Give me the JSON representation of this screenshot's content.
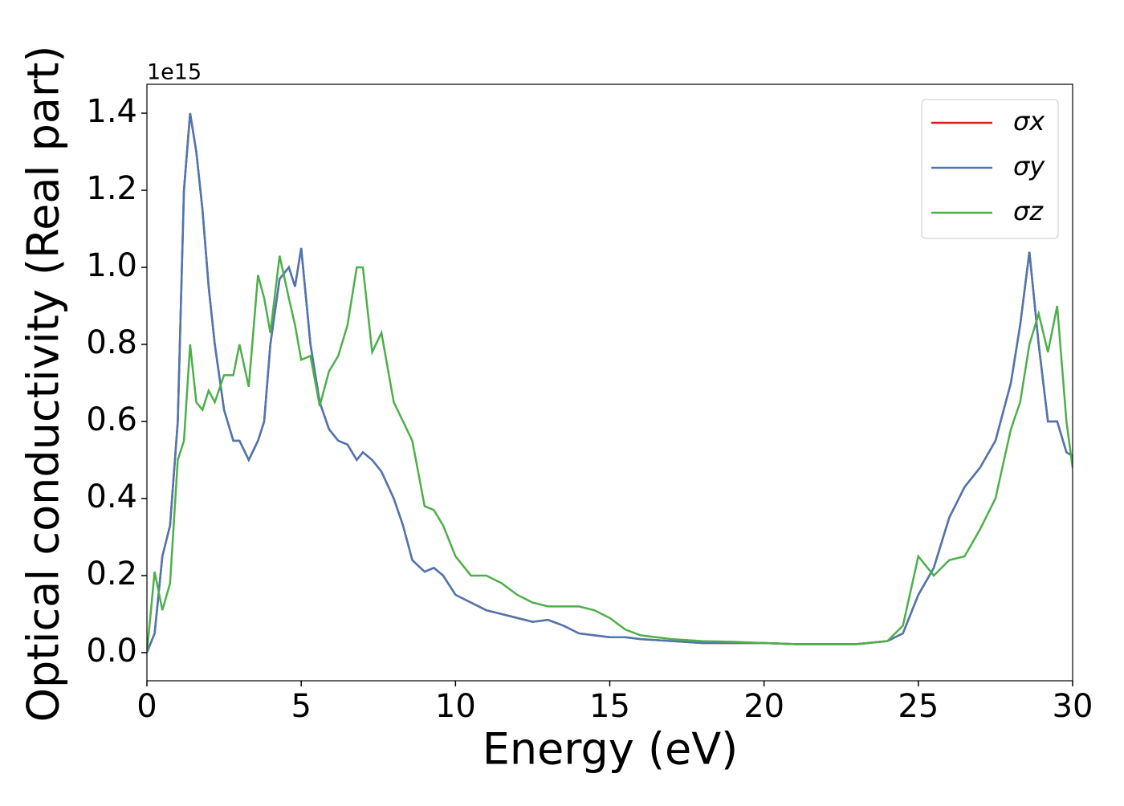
{
  "chart_data": {
    "type": "line",
    "xlabel": "Energy (eV)",
    "ylabel": "Optical conductivity (Real part)",
    "y_offset_label": "1e15",
    "x": [
      0,
      0.25,
      0.5,
      0.75,
      1,
      1.2,
      1.4,
      1.6,
      1.8,
      2,
      2.2,
      2.5,
      2.8,
      3,
      3.3,
      3.6,
      3.8,
      4,
      4.3,
      4.6,
      4.8,
      5,
      5.3,
      5.6,
      5.9,
      6.2,
      6.5,
      6.8,
      7,
      7.3,
      7.6,
      8,
      8.3,
      8.6,
      9,
      9.3,
      9.6,
      10,
      10.5,
      11,
      11.5,
      12,
      12.5,
      13,
      13.5,
      14,
      14.5,
      15,
      15.5,
      16,
      17,
      18,
      19,
      20,
      21,
      22,
      23,
      24,
      24.5,
      25,
      25.5,
      26,
      26.5,
      27,
      27.5,
      28,
      28.3,
      28.6,
      28.9,
      29.2,
      29.5,
      29.8,
      30
    ],
    "series": [
      {
        "name": "σx",
        "color": "#e41a1c",
        "values": [
          0,
          0.05,
          0.25,
          0.33,
          0.6,
          1.2,
          1.4,
          1.3,
          1.15,
          0.95,
          0.8,
          0.63,
          0.55,
          0.55,
          0.5,
          0.55,
          0.6,
          0.8,
          0.97,
          1.0,
          0.95,
          1.05,
          0.8,
          0.65,
          0.58,
          0.55,
          0.54,
          0.5,
          0.52,
          0.5,
          0.47,
          0.4,
          0.33,
          0.24,
          0.21,
          0.22,
          0.2,
          0.15,
          0.13,
          0.11,
          0.1,
          0.09,
          0.08,
          0.085,
          0.07,
          0.05,
          0.045,
          0.04,
          0.04,
          0.035,
          0.03,
          0.025,
          0.025,
          0.025,
          0.022,
          0.022,
          0.022,
          0.03,
          0.05,
          0.15,
          0.22,
          0.35,
          0.43,
          0.48,
          0.55,
          0.7,
          0.85,
          1.04,
          0.8,
          0.6,
          0.6,
          0.52,
          0.51
        ]
      },
      {
        "name": "σy",
        "color": "#4a78b0",
        "values": [
          0,
          0.05,
          0.25,
          0.33,
          0.6,
          1.2,
          1.4,
          1.3,
          1.15,
          0.95,
          0.8,
          0.63,
          0.55,
          0.55,
          0.5,
          0.55,
          0.6,
          0.8,
          0.97,
          1.0,
          0.95,
          1.05,
          0.8,
          0.65,
          0.58,
          0.55,
          0.54,
          0.5,
          0.52,
          0.5,
          0.47,
          0.4,
          0.33,
          0.24,
          0.21,
          0.22,
          0.2,
          0.15,
          0.13,
          0.11,
          0.1,
          0.09,
          0.08,
          0.085,
          0.07,
          0.05,
          0.045,
          0.04,
          0.04,
          0.035,
          0.03,
          0.025,
          0.025,
          0.025,
          0.022,
          0.022,
          0.022,
          0.03,
          0.05,
          0.15,
          0.22,
          0.35,
          0.43,
          0.48,
          0.55,
          0.7,
          0.85,
          1.04,
          0.8,
          0.6,
          0.6,
          0.52,
          0.51
        ]
      },
      {
        "name": "σz",
        "color": "#4daf4a",
        "values": [
          0,
          0.21,
          0.11,
          0.18,
          0.5,
          0.55,
          0.8,
          0.65,
          0.63,
          0.68,
          0.65,
          0.72,
          0.72,
          0.8,
          0.69,
          0.98,
          0.92,
          0.83,
          1.03,
          0.92,
          0.85,
          0.76,
          0.77,
          0.64,
          0.73,
          0.77,
          0.85,
          1.0,
          1.0,
          0.78,
          0.83,
          0.65,
          0.6,
          0.55,
          0.38,
          0.37,
          0.33,
          0.25,
          0.2,
          0.2,
          0.18,
          0.15,
          0.13,
          0.12,
          0.12,
          0.12,
          0.11,
          0.09,
          0.06,
          0.045,
          0.035,
          0.03,
          0.028,
          0.025,
          0.022,
          0.022,
          0.022,
          0.03,
          0.07,
          0.25,
          0.2,
          0.24,
          0.25,
          0.32,
          0.4,
          0.58,
          0.65,
          0.8,
          0.88,
          0.78,
          0.9,
          0.6,
          0.48
        ]
      }
    ],
    "xlim": [
      0,
      30
    ],
    "xticks": [
      0,
      5,
      10,
      15,
      20,
      25,
      30
    ],
    "ylim": [
      -0.073,
      1.475
    ],
    "yticks": [
      {
        "value": 0,
        "label": "0.0"
      },
      0.2,
      0.4,
      0.6,
      0.8,
      {
        "value": 1,
        "label": "1.0"
      },
      1.2,
      1.4
    ],
    "legend": "upper right"
  }
}
